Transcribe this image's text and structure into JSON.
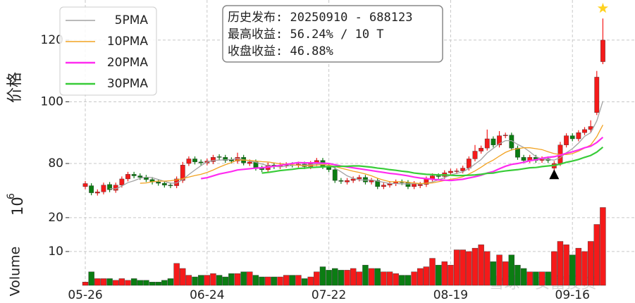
{
  "chart_data": {
    "type": "candlestick",
    "categories": [
      "05-26",
      null,
      null,
      null,
      null,
      null,
      null,
      null,
      null,
      null,
      null,
      null,
      null,
      null,
      null,
      null,
      null,
      null,
      null,
      null,
      "06-24",
      null,
      null,
      null,
      null,
      null,
      null,
      null,
      null,
      null,
      null,
      null,
      null,
      null,
      null,
      null,
      null,
      null,
      null,
      null,
      "07-22",
      null,
      null,
      null,
      null,
      null,
      null,
      null,
      null,
      null,
      null,
      null,
      null,
      null,
      null,
      null,
      null,
      null,
      null,
      null,
      "08-19",
      null,
      null,
      null,
      null,
      null,
      null,
      null,
      null,
      null,
      null,
      null,
      null,
      null,
      null,
      null,
      null,
      null,
      null,
      null,
      "09-16",
      null,
      null,
      null,
      null,
      null
    ],
    "open": [
      72.5,
      72.8,
      70.4,
      70.8,
      73.2,
      71.3,
      73,
      75,
      76.5,
      76,
      75.5,
      74.8,
      74,
      73.6,
      73,
      72.8,
      74.5,
      80,
      81.5,
      80.5,
      80.2,
      80.6,
      82.2,
      82,
      81.2,
      80.8,
      82,
      80,
      80.5,
      78.5,
      78,
      79.5,
      79,
      79.4,
      79.6,
      79.5,
      79.8,
      79,
      80,
      81,
      79.2,
      78,
      74.5,
      74,
      74.5,
      75,
      75.5,
      74,
      74.5,
      72.5,
      73,
      73.5,
      74,
      73.8,
      72.5,
      72.8,
      73.2,
      75,
      76,
      75.8,
      77,
      77.4,
      77.6,
      78.5,
      81.5,
      84,
      85,
      88,
      86,
      89,
      89.2,
      85,
      82,
      81,
      82,
      81,
      81.5,
      78.5,
      80,
      86,
      89,
      88,
      90,
      91,
      96.5,
      113
    ],
    "high": [
      74.3,
      73.6,
      71.6,
      73.8,
      74,
      73.8,
      75.8,
      77.3,
      77.3,
      76.8,
      76.3,
      75.6,
      74.8,
      74.4,
      73.8,
      75.8,
      80.5,
      82.3,
      82.3,
      81.3,
      81.6,
      82.8,
      83,
      82.8,
      82,
      83.5,
      82.8,
      81.3,
      81.3,
      79.3,
      80.3,
      80.3,
      80.3,
      80.4,
      80.4,
      80.6,
      80.6,
      80.8,
      81.8,
      81.8,
      80,
      78.8,
      75.3,
      75.3,
      75.8,
      76.3,
      76.3,
      75.3,
      75.3,
      73.8,
      74.3,
      74.8,
      74.8,
      74.6,
      74.3,
      74,
      75.8,
      76.8,
      76.8,
      77.8,
      78.3,
      78.4,
      79.3,
      82.3,
      86,
      85.8,
      91,
      88.8,
      90.5,
      90,
      90,
      85.8,
      82.8,
      82.8,
      82.8,
      82.3,
      82.3,
      80.8,
      87,
      89.8,
      89.8,
      90.8,
      91.8,
      94,
      110,
      127
    ],
    "low": [
      71.7,
      69.7,
      69.6,
      70,
      70.7,
      70.5,
      72.2,
      74.2,
      75.2,
      74.7,
      74,
      73.2,
      72.8,
      72.2,
      72,
      72,
      73.7,
      79.2,
      79.7,
      79.4,
      79.4,
      79.8,
      81.2,
      80.2,
      80,
      80,
      79.4,
      79.2,
      77.7,
      77.2,
      77.2,
      78.2,
      78.2,
      78.6,
      78.7,
      78.7,
      78.2,
      78.2,
      79.2,
      78.2,
      77.2,
      73.7,
      73.4,
      73.2,
      73.7,
      74.2,
      73.2,
      73.2,
      71.7,
      71.7,
      72.2,
      72.7,
      73,
      71.7,
      71.7,
      72,
      72.4,
      74.2,
      75,
      75,
      76.2,
      76.6,
      76.8,
      77.7,
      80.7,
      83.2,
      84.2,
      85.2,
      85.2,
      88.2,
      84.2,
      81.2,
      80.2,
      80.2,
      80.2,
      80.2,
      80.2,
      77.7,
      79.2,
      85.2,
      87.2,
      87.2,
      89.2,
      90.2,
      95.7,
      112.2
    ],
    "close": [
      73.5,
      70.5,
      70.8,
      73,
      71.5,
      73,
      75,
      76.5,
      76,
      75.5,
      74.8,
      74,
      73.6,
      73,
      72.8,
      75,
      79.5,
      81.5,
      80.5,
      80.2,
      80.8,
      82,
      82,
      81,
      80.8,
      82,
      80.2,
      80.5,
      78.5,
      78,
      79.5,
      79,
      79.5,
      79.6,
      79.5,
      79.8,
      79,
      80,
      81,
      79,
      78,
      74.5,
      74.2,
      74.5,
      75,
      75.5,
      74,
      74.5,
      72.5,
      73,
      73.5,
      74,
      73.8,
      72.5,
      73.5,
      73.2,
      75,
      76,
      75.8,
      77,
      77.5,
      77.6,
      78.5,
      81.5,
      84,
      85,
      88,
      86,
      89,
      89.2,
      85,
      82,
      81,
      82,
      81,
      81.5,
      81,
      80,
      86,
      89,
      88,
      90,
      91,
      92,
      108,
      120
    ],
    "volume": [
      1,
      4,
      2,
      2,
      2,
      1.5,
      2,
      1.5,
      2,
      1.5,
      1.5,
      1,
      1,
      1.5,
      2,
      6.5,
      5,
      3,
      2.5,
      3,
      3,
      3.5,
      3,
      2.5,
      3.5,
      3.5,
      4,
      4,
      3,
      2.5,
      2.5,
      2.5,
      2.5,
      3,
      3,
      3,
      2,
      2.5,
      4,
      5.5,
      4.5,
      5,
      4.5,
      4.5,
      5,
      4,
      6,
      5,
      5,
      4,
      4,
      3.5,
      3,
      3,
      4,
      5,
      5.5,
      8,
      6,
      7,
      6,
      10.5,
      10.5,
      10,
      11,
      12,
      10,
      7,
      9,
      7,
      9,
      6,
      5,
      4,
      4,
      4,
      4,
      10,
      13,
      12,
      9,
      11,
      10,
      13,
      18,
      23
    ],
    "up_color": "#f51a1a",
    "down_color": "#0b7d12",
    "moving_averages": [
      {
        "name": "5PMA",
        "color": "#a3a3a3",
        "values": [
          null,
          null,
          null,
          null,
          71.9,
          71.8,
          72.7,
          73.8,
          74.4,
          75.2,
          75.6,
          75.4,
          74.8,
          74.2,
          73.6,
          73.7,
          74.8,
          76.4,
          77.9,
          79.3,
          80.5,
          81,
          81.1,
          81.2,
          81.3,
          81.6,
          81.2,
          80.9,
          80.4,
          79.8,
          79.3,
          79.1,
          78.9,
          79.1,
          79.4,
          79.5,
          79.5,
          79.6,
          79.9,
          79.8,
          79.4,
          78.5,
          77.3,
          76,
          75.2,
          74.7,
          74.6,
          74.7,
          74.3,
          73.9,
          73.5,
          73.5,
          73.4,
          73.4,
          73.5,
          73.4,
          73.6,
          74,
          74.7,
          75.4,
          76.3,
          76.8,
          77.3,
          78.4,
          79.8,
          81.3,
          83.4,
          84.9,
          86.4,
          87.4,
          87.4,
          86.2,
          85.2,
          83.8,
          82.2,
          81.5,
          81.3,
          81.1,
          81.9,
          83.5,
          84.8,
          86.6,
          88.8,
          90,
          93.8,
          100.2
        ]
      },
      {
        "name": "10PMA",
        "color": "#f2a322",
        "values": [
          null,
          null,
          null,
          null,
          null,
          null,
          null,
          null,
          null,
          73.6,
          73.7,
          74.1,
          74.3,
          74.3,
          74.4,
          74.7,
          75.1,
          75.6,
          76.1,
          76.5,
          77.1,
          77.9,
          78.8,
          79.6,
          80.3,
          81.1,
          81.1,
          81,
          80.8,
          80.6,
          80.5,
          80.2,
          79.9,
          79.8,
          79.6,
          79.4,
          79.3,
          79.3,
          79.5,
          79.6,
          79.5,
          79,
          78.5,
          78,
          77.5,
          77.1,
          76.6,
          76,
          75.2,
          74.6,
          74.1,
          74.1,
          74.1,
          73.9,
          73.7,
          73.5,
          73.6,
          73.7,
          74.1,
          74.5,
          74.9,
          75.2,
          75.7,
          76.6,
          77.6,
          78.8,
          80.1,
          81.1,
          82.4,
          83.6,
          84.4,
          84.8,
          85.1,
          85.1,
          84.8,
          84.5,
          83.8,
          83.2,
          82.9,
          82.9,
          83.2,
          84,
          85,
          86,
          88.7,
          92.5
        ]
      },
      {
        "name": "20PMA",
        "color": "#ff2cf0",
        "values": [
          null,
          null,
          null,
          null,
          null,
          null,
          null,
          null,
          null,
          null,
          null,
          null,
          null,
          null,
          null,
          null,
          null,
          null,
          null,
          75.1,
          75.4,
          76,
          76.6,
          77,
          77.4,
          77.9,
          78.1,
          78.3,
          78.5,
          78.6,
          78.8,
          79.1,
          79.4,
          79.7,
          80,
          80.3,
          80.2,
          80.2,
          80.2,
          80.1,
          80,
          79.6,
          79.2,
          78.9,
          78.6,
          78.3,
          78,
          77.7,
          77.4,
          77.1,
          76.8,
          76.6,
          76.3,
          76,
          75.6,
          75.3,
          75.1,
          74.9,
          74.7,
          74.6,
          74.5,
          74.7,
          74.9,
          75.3,
          75.7,
          76.2,
          76.9,
          77.4,
          78.3,
          79.1,
          79.7,
          80,
          80.4,
          80.9,
          81.2,
          81.7,
          82,
          82.2,
          82.7,
          83.3,
          83.8,
          84.4,
          85.1,
          85.6,
          86.8,
          88.5
        ]
      },
      {
        "name": "30PMA",
        "color": "#38cc38",
        "values": [
          null,
          null,
          null,
          null,
          null,
          null,
          null,
          null,
          null,
          null,
          null,
          null,
          null,
          null,
          null,
          null,
          null,
          null,
          null,
          null,
          null,
          null,
          null,
          null,
          null,
          null,
          null,
          null,
          null,
          76.9,
          77.1,
          77.4,
          77.7,
          77.9,
          78.1,
          78.4,
          78.5,
          78.7,
          78.8,
          78.9,
          79,
          79,
          79.1,
          79.1,
          79.2,
          79.2,
          79,
          78.8,
          78.5,
          78.3,
          78,
          77.8,
          77.5,
          77.3,
          76.9,
          76.7,
          76.5,
          76.4,
          76.3,
          76.3,
          76.2,
          76.1,
          76.1,
          76.2,
          76.3,
          76.5,
          76.8,
          76.9,
          77.3,
          77.6,
          77.8,
          78,
          78.3,
          78.6,
          78.7,
          79,
          79.2,
          79.4,
          79.8,
          80.4,
          80.8,
          81.3,
          82,
          82.6,
          83.7,
          85.3
        ]
      }
    ],
    "ylim": [
      66.3,
      133
    ],
    "yticks": [
      80,
      100,
      120
    ],
    "ylabel": "价格",
    "volume_ylim": [
      0,
      23.3
    ],
    "volume_yticks": [
      10,
      20
    ],
    "volume_ylabel": "Volume",
    "volume_scale": {
      "base": "10",
      "exponent": "6"
    },
    "info_box": [
      "历史发布: 20250910 - 688123",
      "最高收益: 56.24% / 10 T",
      "收盘收益: 46.88%"
    ],
    "buy_marker": {
      "category_index": 77,
      "value": 76.3,
      "color": "#000000"
    },
    "peak_marker": {
      "category_index": 85,
      "value": 130.3,
      "color": "#ffd21f"
    },
    "grid": true,
    "watermark": "雪球 · 安富投资"
  }
}
